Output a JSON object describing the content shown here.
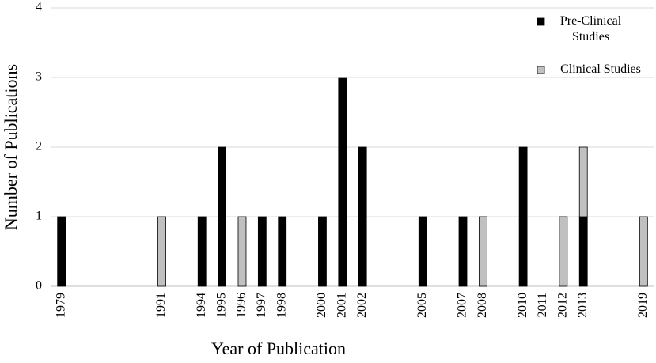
{
  "chart_data": {
    "type": "stacked_bar",
    "x_label": "Year of Publication",
    "y_label": "Number of Publications",
    "categories": [
      "1979",
      null,
      null,
      null,
      null,
      "1991",
      null,
      "1994",
      "1995",
      "1996",
      "1997",
      "1998",
      null,
      "2000",
      "2001",
      "2002",
      null,
      null,
      "2005",
      null,
      "2007",
      "2008",
      null,
      "2010",
      "2011",
      "2012",
      "2013",
      null,
      null,
      "2019"
    ],
    "series": [
      {
        "name": "Pre-Clinical Studies",
        "color": "#000000",
        "values": [
          1,
          0,
          0,
          0,
          0,
          0,
          0,
          1,
          2,
          0,
          1,
          1,
          0,
          1,
          3,
          2,
          0,
          0,
          1,
          0,
          1,
          0,
          0,
          2,
          0,
          0,
          1,
          0,
          0,
          0
        ]
      },
      {
        "name": "Clinical Studies",
        "color": "#c0c0c0",
        "values": [
          0,
          0,
          0,
          0,
          0,
          1,
          0,
          0,
          0,
          1,
          0,
          0,
          0,
          0,
          0,
          0,
          0,
          0,
          0,
          0,
          0,
          1,
          0,
          0,
          0,
          1,
          1,
          0,
          0,
          1
        ]
      }
    ],
    "ylim": [
      0,
      4
    ],
    "yticks": [
      0,
      1,
      2,
      3,
      4
    ],
    "grid": true,
    "legend": "top-right"
  }
}
